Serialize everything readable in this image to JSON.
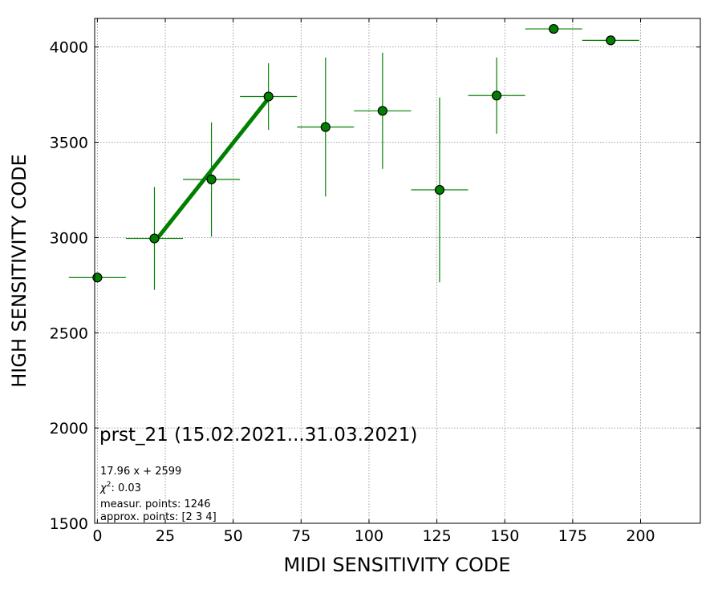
{
  "chart_data": {
    "type": "scatter",
    "xlabel": "MIDI SENSITIVITY CODE",
    "ylabel": "HIGH SENSITIVITY CODE",
    "xlim": [
      -1,
      222
    ],
    "ylim": [
      1500,
      4150
    ],
    "xticks": [
      0,
      25,
      50,
      75,
      100,
      125,
      150,
      175,
      200
    ],
    "yticks": [
      1500,
      2000,
      2500,
      3000,
      3500,
      4000
    ],
    "grid": true,
    "colors": {
      "marker": "#008000",
      "marker_edge": "#000000",
      "fit_line": "#008000",
      "errorbar": "#008000"
    },
    "series": [
      {
        "points": [
          {
            "x": 0,
            "y": 2790,
            "xerr": 10.5,
            "yerr": 0
          },
          {
            "x": 21,
            "y": 2995,
            "xerr": 10.5,
            "yerr": 270
          },
          {
            "x": 42,
            "y": 3305,
            "xerr": 10.5,
            "yerr": 300
          },
          {
            "x": 63,
            "y": 3740,
            "xerr": 10.5,
            "yerr": 175
          },
          {
            "x": 84,
            "y": 3580,
            "xerr": 10.5,
            "yerr": 365
          },
          {
            "x": 105,
            "y": 3665,
            "xerr": 10.5,
            "yerr": 305
          },
          {
            "x": 126,
            "y": 3250,
            "xerr": 10.5,
            "yerr": 485
          },
          {
            "x": 147,
            "y": 3745,
            "xerr": 10.5,
            "yerr": 200
          },
          {
            "x": 168,
            "y": 4095,
            "xerr": 10.5,
            "yerr": 0
          },
          {
            "x": 189,
            "y": 4035,
            "xerr": 10.5,
            "yerr": 20
          }
        ]
      }
    ],
    "fit_line": {
      "slope": 17.96,
      "intercept": 2599,
      "x_start": 21,
      "x_end": 63
    },
    "annotations": {
      "title": "prst_21 (15.02.2021...31.03.2021)",
      "equation": "17.96 x + 2599",
      "chi2_label": "χ",
      "chi2_sup": "2",
      "chi2_value": ": 0.03",
      "measur_points": "measur. points: 1246",
      "approx_points": "approx. points: [2 3 4]"
    }
  }
}
